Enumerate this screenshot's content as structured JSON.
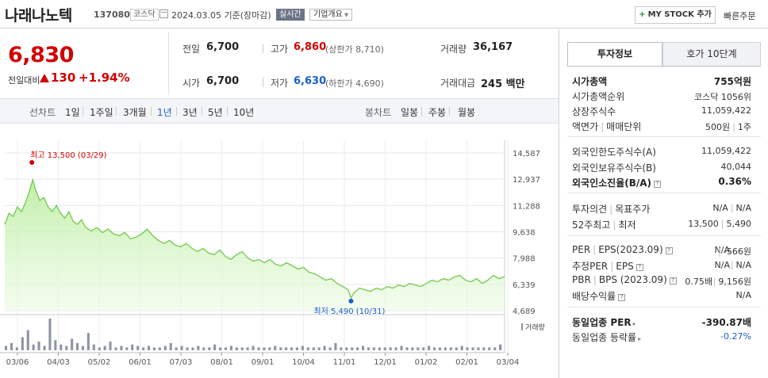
{
  "header": {
    "name": "나래나노텍",
    "code": "137080",
    "market": "코스닥",
    "date_basis": "2024.03.05  기준(장마감)",
    "live_label": "실시간",
    "company_info_label": "기업개요",
    "mystock_plus": "+",
    "mystock_label": "MY STOCK 추가",
    "quick_order_label": "빠른주문"
  },
  "price": {
    "current": "6,830",
    "change_label": "전일대비",
    "change": "130",
    "change_pct": "+1.94%"
  },
  "quote": {
    "prev_label": "전일",
    "prev": "6,700",
    "high_label": "고가",
    "high": "6,860",
    "upper_limit": "(상한가 8,710)",
    "volume_label": "거래량",
    "volume": "36,167",
    "open_label": "시가",
    "open": "6,700",
    "low_label": "저가",
    "low": "6,630",
    "lower_limit": "(하한가 4,690)",
    "amount_label": "거래대금",
    "amount": "245 백만"
  },
  "toolbar": {
    "line_label": "선차트",
    "periods": [
      "1일",
      "1주일",
      "3개월",
      "1년",
      "3년",
      "5년",
      "10년"
    ],
    "selected_period": "1년",
    "candle_label": "봉차트",
    "candles": [
      "일봉",
      "주봉",
      "월봉"
    ]
  },
  "chart_data": {
    "type": "area",
    "y_ticks": [
      "14,587",
      "12,937",
      "11,288",
      "9,638",
      "7,988",
      "6,339",
      "4,689"
    ],
    "ylim": [
      4689,
      14587
    ],
    "x_ticks": [
      "03/06",
      "04/03",
      "05/02",
      "06/01",
      "07/03",
      "08/01",
      "09/01",
      "10/04",
      "11/01",
      "12/01",
      "01/02",
      "02/01",
      "03/04"
    ],
    "high_annotation": "최고 13,500 (03/29)",
    "low_annotation": "최저 5,490 (10/31)",
    "volume_legend": "거래량",
    "price_series": [
      [
        0,
        10100
      ],
      [
        3,
        10800
      ],
      [
        6,
        10600
      ],
      [
        9,
        11200
      ],
      [
        12,
        10900
      ],
      [
        15,
        11500
      ],
      [
        18,
        12300
      ],
      [
        20,
        12900
      ],
      [
        22,
        12300
      ],
      [
        25,
        11600
      ],
      [
        28,
        11800
      ],
      [
        31,
        11200
      ],
      [
        34,
        10900
      ],
      [
        37,
        11300
      ],
      [
        40,
        10800
      ],
      [
        43,
        10500
      ],
      [
        46,
        10900
      ],
      [
        49,
        10300
      ],
      [
        52,
        10100
      ],
      [
        55,
        10400
      ],
      [
        58,
        9900
      ],
      [
        62,
        9700
      ],
      [
        66,
        9900
      ],
      [
        70,
        9600
      ],
      [
        74,
        9800
      ],
      [
        78,
        9500
      ],
      [
        82,
        9400
      ],
      [
        86,
        9600
      ],
      [
        90,
        9200
      ],
      [
        94,
        9300
      ],
      [
        98,
        9500
      ],
      [
        102,
        9800
      ],
      [
        106,
        9400
      ],
      [
        110,
        9100
      ],
      [
        114,
        8900
      ],
      [
        118,
        9100
      ],
      [
        122,
        8800
      ],
      [
        126,
        8700
      ],
      [
        130,
        8900
      ],
      [
        134,
        8600
      ],
      [
        138,
        8400
      ],
      [
        142,
        8600
      ],
      [
        146,
        8300
      ],
      [
        150,
        8200
      ],
      [
        154,
        8500
      ],
      [
        158,
        8100
      ],
      [
        162,
        7900
      ],
      [
        166,
        8200
      ],
      [
        170,
        8400
      ],
      [
        174,
        8000
      ],
      [
        178,
        7800
      ],
      [
        182,
        7900
      ],
      [
        186,
        7700
      ],
      [
        190,
        7900
      ],
      [
        194,
        7600
      ],
      [
        198,
        7500
      ],
      [
        202,
        7700
      ],
      [
        206,
        7500
      ],
      [
        210,
        7300
      ],
      [
        214,
        7400
      ],
      [
        218,
        7100
      ],
      [
        222,
        7000
      ],
      [
        226,
        6800
      ],
      [
        230,
        6600
      ],
      [
        234,
        6700
      ],
      [
        238,
        6400
      ],
      [
        242,
        6200
      ],
      [
        246,
        6000
      ],
      [
        248,
        5490
      ],
      [
        250,
        5800
      ],
      [
        254,
        6100
      ],
      [
        258,
        6000
      ],
      [
        262,
        5900
      ],
      [
        266,
        6100
      ],
      [
        270,
        6000
      ],
      [
        274,
        6200
      ],
      [
        278,
        6100
      ],
      [
        282,
        6300
      ],
      [
        286,
        6200
      ],
      [
        290,
        6400
      ],
      [
        294,
        6300
      ],
      [
        298,
        6200
      ],
      [
        302,
        6400
      ],
      [
        306,
        6600
      ],
      [
        310,
        6500
      ],
      [
        314,
        6700
      ],
      [
        318,
        6600
      ],
      [
        322,
        6800
      ],
      [
        326,
        6900
      ],
      [
        330,
        6600
      ],
      [
        334,
        6500
      ],
      [
        338,
        6700
      ],
      [
        342,
        6400
      ],
      [
        346,
        6600
      ],
      [
        350,
        6900
      ],
      [
        354,
        6700
      ],
      [
        358,
        6830
      ]
    ],
    "volume_series": [
      3,
      5,
      2,
      9,
      14,
      4,
      6,
      3,
      22,
      7,
      4,
      3,
      8,
      5,
      3,
      12,
      4,
      2,
      3,
      6,
      2,
      3,
      2,
      4,
      3,
      2,
      3,
      2,
      2,
      3,
      5,
      2,
      3,
      2,
      2,
      3,
      2,
      2,
      4,
      2,
      2,
      3,
      2,
      2,
      2,
      3,
      2,
      2,
      2,
      3,
      2,
      2,
      2,
      2,
      3,
      2,
      2,
      2,
      3,
      2,
      5,
      2,
      2,
      2,
      2,
      3,
      2,
      2,
      2,
      2,
      2,
      2,
      3,
      2,
      2,
      2,
      2,
      3,
      2,
      2,
      2,
      2,
      2,
      3,
      2,
      2,
      2,
      2,
      2,
      2,
      4
    ]
  },
  "invest_info": {
    "tab_active": "투자정보",
    "tab_inactive": "호가 10단계",
    "market_cap_label": "시가총액",
    "market_cap": "755억원",
    "cap_rank_label": "시가총액순위",
    "cap_rank": "코스닥 1056위",
    "shares_label": "상장주식수",
    "shares": "11,059,422",
    "par_label": "액면가",
    "par_unit_label": "매매단위",
    "par": "500원",
    "unit": "1주",
    "foreign_limit_label": "외국인한도주식수(A)",
    "foreign_limit": "11,059,422",
    "foreign_hold_label": "외국인보유주식수(B)",
    "foreign_hold": "40,044",
    "foreign_ratio_label": "외국인소진율(B/A)",
    "foreign_ratio": "0.36%",
    "opinion_label": "투자의견",
    "target_label": "목표주가",
    "opinion": "N/A",
    "target": "N/A",
    "w52_high_label": "52주최고",
    "w52_low_label": "최저",
    "w52_high": "13,500",
    "w52_low": "5,490",
    "per_label": "PER",
    "eps_label": "EPS(2023.09)",
    "per": "N/A",
    "eps": "-566원",
    "est_per_label": "추정PER",
    "est_eps_label": "EPS",
    "est_per": "N/A",
    "est_eps": "N/A",
    "pbr_label": "PBR",
    "bps_label": "BPS (2023.09)",
    "pbr": "0.75배",
    "bps": "9,156원",
    "div_label": "배당수익률",
    "div": "N/A",
    "ind_per_label": "동일업종 PER",
    "ind_per": "-390.87배",
    "ind_chg_label": "동일업종 등락률",
    "ind_chg": "-0.27%"
  }
}
